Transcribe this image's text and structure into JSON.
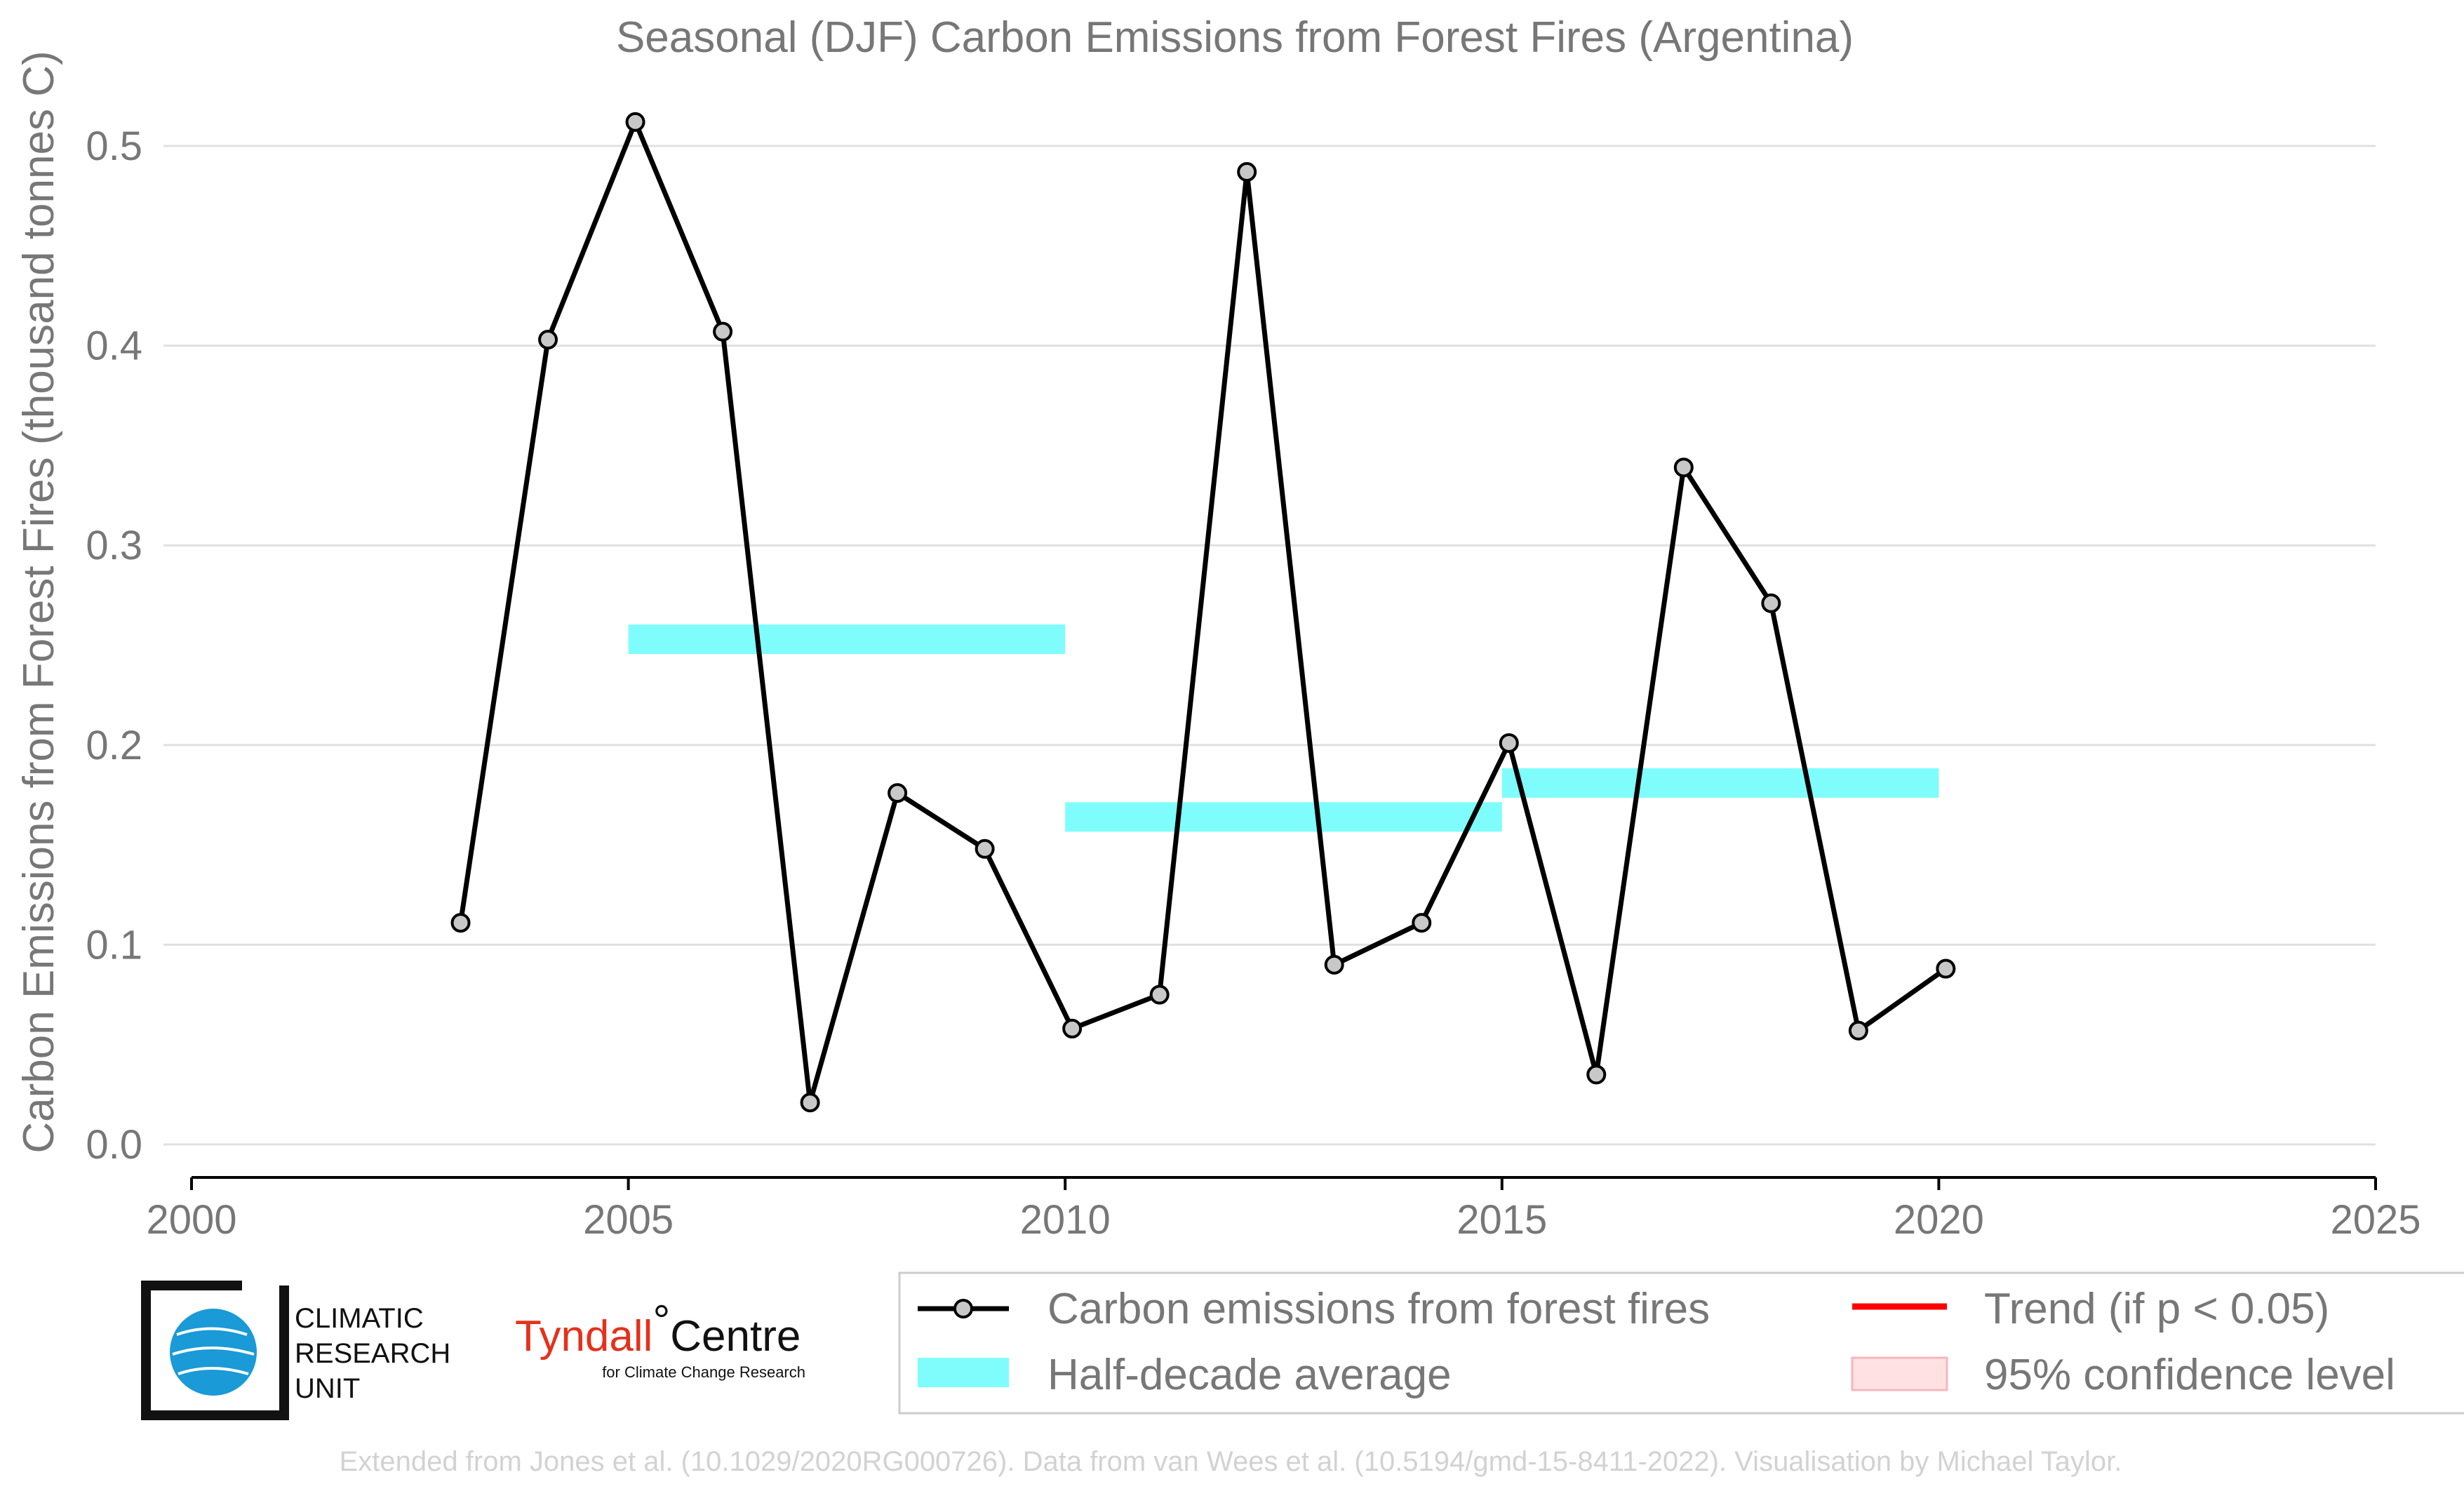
{
  "colors": {
    "line": "#000000",
    "marker_fill": "#c8c8c8",
    "half_decade": "#7ffdfd",
    "trend": "#ff0000",
    "confidence_fill": "#ffe1e4",
    "confidence_edge": "#f6b6be",
    "grid": "#e0e0e0",
    "text": "#777777",
    "source_text": "#d2d2d2",
    "logo_blue": "#1a9ad6",
    "tyndall_red": "#e4311b"
  },
  "chart_data": {
    "type": "line",
    "title": "Seasonal (DJF) Carbon Emissions from Forest Fires (Argentina)",
    "xlabel": "",
    "ylabel": "Carbon Emissions from Forest Fires (thousand tonnes C)",
    "xlim": [
      2000,
      2025
    ],
    "ylim": [
      0.0,
      0.5
    ],
    "xticks": [
      2000,
      2005,
      2010,
      2015,
      2020,
      2025
    ],
    "yticks": [
      0.0,
      0.1,
      0.2,
      0.3,
      0.4,
      0.5
    ],
    "ytick_labels": [
      "0.0",
      "0.1",
      "0.2",
      "0.3",
      "0.4",
      "0.5"
    ],
    "grid": true,
    "legend_position": "bottom",
    "series": [
      {
        "name": "Carbon emissions from forest fires",
        "x": [
          2003,
          2004,
          2005,
          2006,
          2007,
          2008,
          2009,
          2010,
          2011,
          2012,
          2013,
          2014,
          2015,
          2016,
          2017,
          2018,
          2019,
          2020
        ],
        "values": [
          0.111,
          0.403,
          0.512,
          0.407,
          0.021,
          0.176,
          0.148,
          0.058,
          0.075,
          0.487,
          0.09,
          0.111,
          0.201,
          0.035,
          0.339,
          0.271,
          0.057,
          0.088
        ]
      }
    ],
    "half_decade_average": {
      "name": "Half-decade average",
      "segments": [
        {
          "start": 2005,
          "end": 2010,
          "value": 0.253
        },
        {
          "start": 2010,
          "end": 2015,
          "value": 0.164
        },
        {
          "start": 2015,
          "end": 2020,
          "value": 0.181
        }
      ]
    },
    "legend": [
      {
        "label": "Carbon emissions from forest fires",
        "kind": "line-marker"
      },
      {
        "label": "Trend (if p < 0.05)",
        "kind": "trend-line"
      },
      {
        "label": "Half-decade average",
        "kind": "band"
      },
      {
        "label": "95% confidence level",
        "kind": "confidence-patch"
      }
    ]
  },
  "logos": {
    "cru": {
      "lines": [
        "CLIMATIC",
        "RESEARCH",
        "UNIT"
      ]
    },
    "tyndall": {
      "name_red": "Tyndall",
      "degree": "°",
      "name_black": "Centre",
      "tagline": "for Climate Change Research"
    }
  },
  "source_note": "Extended from Jones et al. (10.1029/2020RG000726). Data from van Wees et al. (10.5194/gmd-15-8411-2022). Visualisation by Michael Taylor."
}
